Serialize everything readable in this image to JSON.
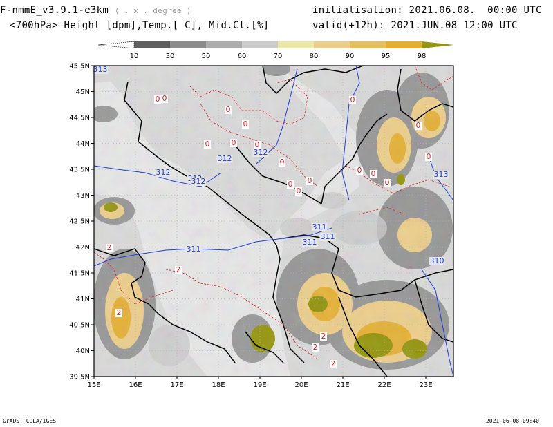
{
  "header": {
    "title": "F-nmmE_v3.9.1-e3km",
    "degree_note": "( . x . degree )",
    "subtitle": "<700hPa> Height [dpm],Temp.[ C], Mid.Cl.[%]",
    "initialisation": "initialisation: 2021.06.08.  00:00 UTC",
    "valid": "valid(+12h): 2021.JUN.08 12:00 UTC"
  },
  "colorbar": {
    "labels": [
      "10",
      "30",
      "50",
      "60",
      "70",
      "80",
      "90",
      "95",
      "98"
    ],
    "colors": [
      "#ffffff",
      "#5e5e5e",
      "#8c8c8c",
      "#acacac",
      "#cbcbcb",
      "#ece8a8",
      "#ecce8c",
      "#e6bf5e",
      "#e4ae2e",
      "#959610"
    ]
  },
  "map": {
    "lat_labels": [
      "45.5N",
      "45N",
      "44.5N",
      "44N",
      "43.5N",
      "43N",
      "42.5N",
      "42N",
      "41.5N",
      "41N",
      "40.5N",
      "40N",
      "39.5N"
    ],
    "lon_labels": [
      "15E",
      "16E",
      "17E",
      "18E",
      "19E",
      "20E",
      "21E",
      "22E",
      "23E"
    ],
    "height_contour_labels": [
      "313",
      "312",
      "312",
      "312",
      "312",
      "312",
      "311",
      "311",
      "311",
      "311",
      "310",
      "313"
    ],
    "temp_contour_labels": [
      "0",
      "0",
      "0",
      "0",
      "0",
      "0",
      "0",
      "0",
      "0",
      "0",
      "0",
      "0",
      "0",
      "0",
      "0",
      "0",
      "0",
      "2",
      "2",
      "2",
      "2",
      "2",
      "2"
    ],
    "colors": {
      "background": "#e6e6e6",
      "coast": "#000000",
      "height_contour": "#1e3cdc",
      "temp_contour": "#dc2020",
      "grid": "#b4b4b4"
    }
  },
  "footer": {
    "left": "GrADS: COLA/IGES",
    "right": "2021-06-08-09:40"
  }
}
